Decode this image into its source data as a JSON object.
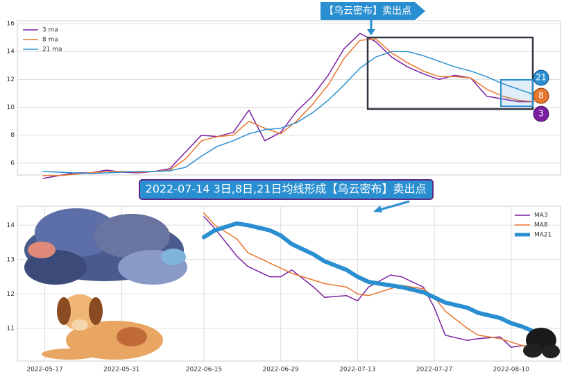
{
  "annotations": {
    "top_label": "【乌云密布】卖出点",
    "bottom_label": "2022-07-14 3日,8日,21日均线形成【乌云密布】卖出点",
    "badges": [
      "21",
      "8",
      "3"
    ]
  },
  "chart_data": [
    {
      "type": "line",
      "ylim": [
        5.15,
        16.2
      ],
      "yticks": [
        6,
        8,
        10,
        12,
        14,
        16
      ],
      "grid": true,
      "legend": "upper left",
      "series": [
        {
          "name": "3 ma",
          "color": "#7b1fa2",
          "linewidth": 1.5,
          "values": [
            4.9,
            5.1,
            5.3,
            5.3,
            5.5,
            5.35,
            5.3,
            5.4,
            5.6,
            6.8,
            8.0,
            7.9,
            8.2,
            9.8,
            7.6,
            8.2,
            9.7,
            10.8,
            12.3,
            14.2,
            15.3,
            14.7,
            13.6,
            12.9,
            12.4,
            12.0,
            12.3,
            12.1,
            10.8,
            10.6,
            10.4,
            10.4
          ]
        },
        {
          "name": "8 ma",
          "color": "#e8762c",
          "linewidth": 1.5,
          "values": [
            5.1,
            5.1,
            5.2,
            5.3,
            5.4,
            5.4,
            5.35,
            5.4,
            5.5,
            6.3,
            7.6,
            7.9,
            8.0,
            9.0,
            8.5,
            8.1,
            9.0,
            10.2,
            11.6,
            13.5,
            14.8,
            14.9,
            13.9,
            13.2,
            12.6,
            12.2,
            12.2,
            12.1,
            11.3,
            10.8,
            10.5,
            10.4
          ]
        },
        {
          "name": "21 ma",
          "color": "#2a8fd0",
          "linewidth": 1.5,
          "values": [
            5.4,
            5.35,
            5.3,
            5.25,
            5.3,
            5.35,
            5.4,
            5.4,
            5.45,
            5.7,
            6.5,
            7.2,
            7.6,
            8.1,
            8.4,
            8.5,
            8.9,
            9.6,
            10.5,
            11.6,
            12.8,
            13.6,
            14.0,
            14.0,
            13.7,
            13.3,
            12.9,
            12.6,
            12.2,
            11.7,
            11.3,
            10.9
          ]
        }
      ]
    },
    {
      "type": "line",
      "ylim": [
        10.05,
        14.55
      ],
      "yticks": [
        11,
        12,
        13,
        14
      ],
      "grid": true,
      "legend": "upper right",
      "xlim": [
        "2022-05-12",
        "2022-08-19"
      ],
      "xticks": [
        "2022-05-17",
        "2022-05-31",
        "2022-06-15",
        "2022-06-29",
        "2022-07-13",
        "2022-07-27",
        "2022-08-10"
      ],
      "x": [
        "2022-06-15",
        "2022-06-17",
        "2022-06-21",
        "2022-06-23",
        "2022-06-27",
        "2022-06-29",
        "2022-07-01",
        "2022-07-05",
        "2022-07-07",
        "2022-07-11",
        "2022-07-13",
        "2022-07-15",
        "2022-07-19",
        "2022-07-21",
        "2022-07-25",
        "2022-07-27",
        "2022-07-29",
        "2022-08-02",
        "2022-08-04",
        "2022-08-08",
        "2022-08-10",
        "2022-08-12",
        "2022-08-15"
      ],
      "series": [
        {
          "name": "MA3",
          "color": "#7b1fa2",
          "linewidth": 1.5,
          "values": [
            14.25,
            13.9,
            13.1,
            12.8,
            12.5,
            12.5,
            12.7,
            12.2,
            11.9,
            11.95,
            11.8,
            12.2,
            12.55,
            12.5,
            12.2,
            11.6,
            10.8,
            10.65,
            10.7,
            10.75,
            10.45,
            10.5,
            10.45
          ]
        },
        {
          "name": "MA8",
          "color": "#e8762c",
          "linewidth": 1.5,
          "values": [
            14.35,
            14.0,
            13.6,
            13.2,
            12.9,
            12.75,
            12.6,
            12.4,
            12.3,
            12.2,
            12.0,
            11.95,
            12.15,
            12.25,
            12.15,
            11.9,
            11.5,
            11.0,
            10.8,
            10.7,
            10.6,
            10.5,
            10.45
          ]
        },
        {
          "name": "MA21",
          "color": "#2a8fd0",
          "linewidth": 6,
          "values": [
            13.65,
            13.85,
            14.05,
            14.0,
            13.85,
            13.7,
            13.45,
            13.15,
            12.95,
            12.7,
            12.5,
            12.35,
            12.25,
            12.2,
            12.05,
            11.9,
            11.75,
            11.6,
            11.45,
            11.3,
            11.15,
            11.05,
            10.85
          ]
        }
      ]
    }
  ]
}
